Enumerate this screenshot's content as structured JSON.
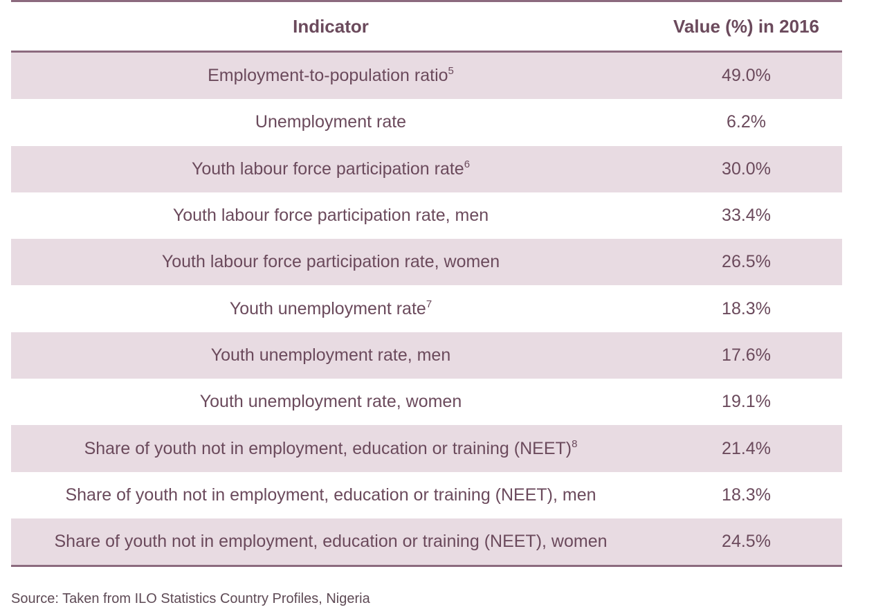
{
  "table": {
    "headers": {
      "indicator": "Indicator",
      "value": "Value (%) in 2016"
    },
    "rows": [
      {
        "indicator": "Employment-to-population ratio",
        "sup": "5",
        "value": "49.0%"
      },
      {
        "indicator": "Unemployment rate",
        "sup": "",
        "value": "6.2%"
      },
      {
        "indicator": "Youth labour force participation rate",
        "sup": "6",
        "value": "30.0%"
      },
      {
        "indicator": "Youth labour force participation rate, men",
        "sup": "",
        "value": "33.4%"
      },
      {
        "indicator": "Youth labour force participation rate, women",
        "sup": "",
        "value": "26.5%"
      },
      {
        "indicator": "Youth unemployment rate",
        "sup": "7",
        "value": "18.3%"
      },
      {
        "indicator": "Youth unemployment rate, men",
        "sup": "",
        "value": "17.6%"
      },
      {
        "indicator": "Youth unemployment rate, women",
        "sup": "",
        "value": "19.1%"
      },
      {
        "indicator": "Share of youth not in employment, education or training (NEET)",
        "sup": "8",
        "value": "21.4%"
      },
      {
        "indicator": "Share of youth not in employment, education or training (NEET), men",
        "sup": "",
        "value": "18.3%"
      },
      {
        "indicator": "Share of youth not in employment, education or training (NEET), women",
        "sup": "",
        "value": "24.5%"
      }
    ]
  },
  "source": "Source: Taken from ILO Statistics Country Profiles, Nigeria",
  "colors": {
    "rule": "#8c6a7e",
    "shade": "#e8dbe2",
    "text": "#6b4a5c"
  }
}
